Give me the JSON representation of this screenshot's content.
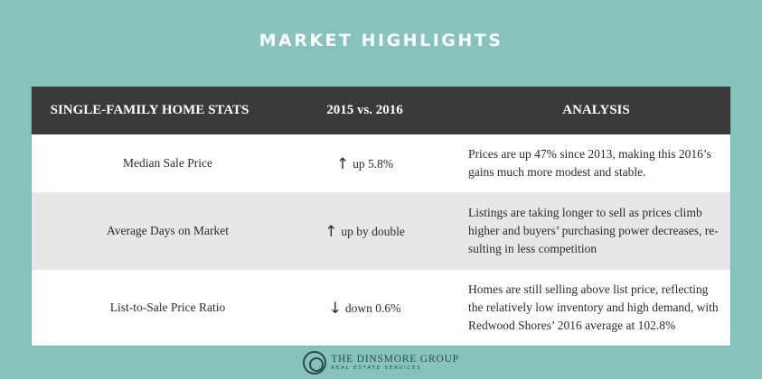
{
  "title": "MARKET HIGHLIGHTS",
  "table": {
    "headers": [
      "SINGLE-FAMILY HOME STATS",
      "2015 vs. 2016",
      "ANALYSIS"
    ],
    "rows": [
      {
        "stat": "Median Sale Price",
        "arrow": "↑",
        "change": "up 5.8%",
        "analysis": "Prices are up 47% since 2013, making this 2016’s gains much more modest and stable."
      },
      {
        "stat": "Average Days on Market",
        "arrow": "↑",
        "change": "up by double",
        "analysis": "Listings are taking longer to sell as prices climb higher and buyers’ purchasing power decreases, re­sulting in less competition"
      },
      {
        "stat": "List-to-Sale Price Ratio",
        "arrow": "↓",
        "change": "down 0.6%",
        "analysis": "Homes are still selling above list price, reflecting the relatively low inventory and high demand, with Redwood Shores’ 2016 average at 102.8%"
      }
    ]
  },
  "logo": {
    "name": "THE DINSMORE GROUP",
    "tagline": "REAL ESTATE SERVICES"
  },
  "colors": {
    "background": "#86c3bd",
    "header": "#3a3a38",
    "shaded_row": "#e7e7e7"
  }
}
